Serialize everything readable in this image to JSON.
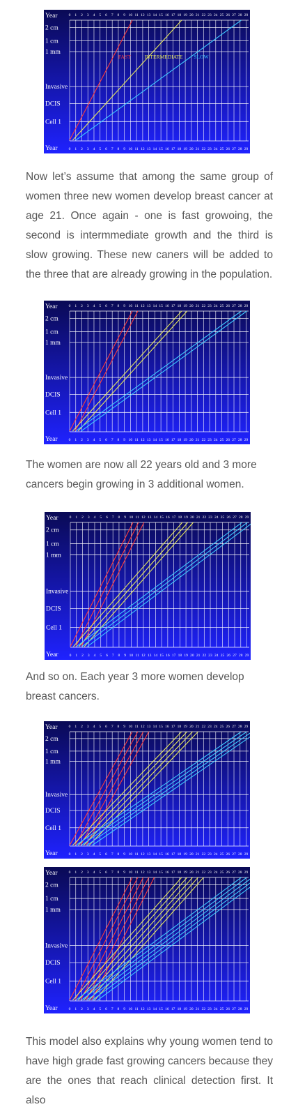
{
  "chart_labels": {
    "y_labels": [
      "Year",
      "2 cm",
      "1 cm",
      "1 mm",
      "Invasive",
      "DCIS",
      "Cell 1",
      "Year"
    ],
    "years": [
      "0",
      "1",
      "2",
      "3",
      "4",
      "5",
      "6",
      "7",
      "8",
      "9",
      "10",
      "11",
      "12",
      "13",
      "14",
      "15",
      "16",
      "17",
      "18",
      "19",
      "20",
      "21",
      "22",
      "23",
      "24",
      "25",
      "26",
      "27",
      "28",
      "29"
    ],
    "series_labels": [
      "FAST",
      "INTERMEDIATE",
      "SLOW"
    ]
  },
  "charts": [
    {
      "id": "chart-1",
      "label_series": true
    },
    {
      "id": "chart-2",
      "label_series": false
    },
    {
      "id": "chart-3",
      "label_series": false
    },
    {
      "id": "chart-4",
      "label_series": false
    },
    {
      "id": "chart-5",
      "label_series": false
    }
  ],
  "paragraphs": {
    "p1": "Now let’s assume that among the same group of women three new women develop breast cancer at age 21. Once again - one is fast growoing, the second is intermmediate growth and the third is slow growing. These new caners will be added to the three that are already growing in the population.",
    "p2": "The women are now all 22 years old and 3 more cancers begin growing in 3 additional women.",
    "p3": "And so on. Each year 3 more women develop breast cancers.",
    "p4": "This model also explains why young women tend to have high grade fast growing cancers because they are the ones that reach clinical detection first. It also"
  },
  "colors": {
    "bg_top": "#0a0a55",
    "bg_bottom": "#1f22ff",
    "grid": "#ffffff",
    "fast": "#ff3b3b",
    "intermediate": "#e8e85a",
    "slow": "#3ec8ff"
  }
}
